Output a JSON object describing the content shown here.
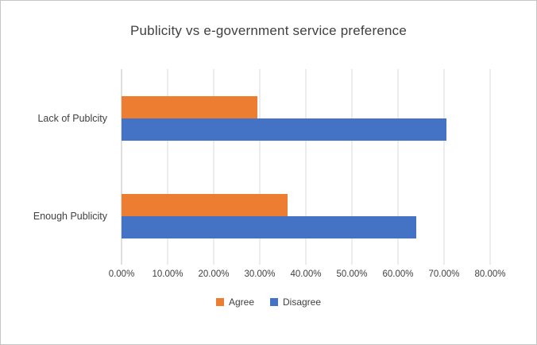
{
  "chart_data": {
    "type": "bar",
    "orientation": "horizontal",
    "title": "Publicity vs e-government service preference",
    "categories": [
      "Lack of Publcity",
      "Enough Publicity"
    ],
    "series": [
      {
        "name": "Agree",
        "color": "#ED7D31",
        "values": [
          29.5,
          36
        ]
      },
      {
        "name": "Disagree",
        "color": "#4472C4",
        "values": [
          70.5,
          64
        ]
      }
    ],
    "x_axis": {
      "min": 0,
      "max": 80,
      "tick_step": 10,
      "tick_labels": [
        "0.00%",
        "10.00%",
        "20.00%",
        "30.00%",
        "40.00%",
        "50.00%",
        "60.00%",
        "70.00%",
        "80.00%"
      ]
    },
    "grid": true,
    "legend": {
      "position": "bottom",
      "entries": [
        "Agree",
        "Disagree"
      ]
    },
    "colors": {
      "title_text": "#404040",
      "axis_text": "#404040",
      "gridline": "#d9d9d9",
      "axis_line": "#bfbfbf"
    }
  }
}
